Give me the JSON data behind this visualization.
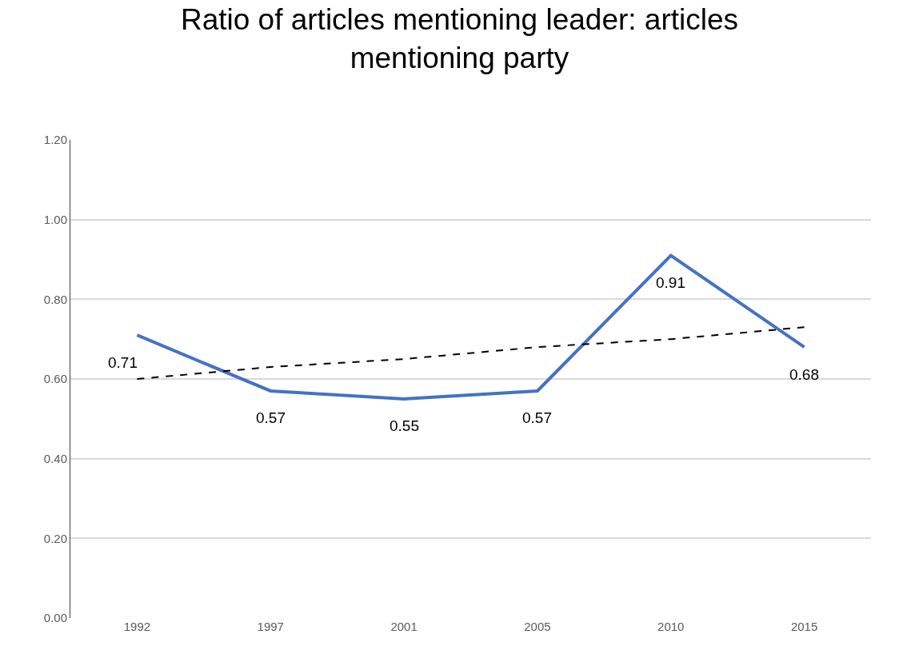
{
  "chart_data": {
    "type": "line",
    "title": "Ratio of articles mentioning leader: articles mentioning party",
    "categories": [
      "1992",
      "1997",
      "2001",
      "2005",
      "2010",
      "2015"
    ],
    "series": [
      {
        "color": "#4472c4",
        "values": [
          0.71,
          0.57,
          0.55,
          0.57,
          0.91,
          0.68
        ],
        "value_labels": [
          "0.71",
          "0.57",
          "0.55",
          "0.57",
          "0.91",
          "0.68"
        ]
      },
      {
        "type": "line",
        "color": "#000000",
        "line_style": "dashed",
        "values": [
          0.6,
          0.63,
          0.65,
          0.68,
          0.7,
          0.73
        ]
      }
    ],
    "ylim": [
      0,
      1.2
    ],
    "yticks": [
      {
        "value": 0,
        "label": "0.00"
      },
      {
        "value": 0.2,
        "label": "0.20"
      },
      {
        "value": 0.4,
        "label": "0.40"
      },
      {
        "value": 0.6,
        "label": "0.60"
      },
      {
        "value": 0.8,
        "label": "0.80"
      },
      {
        "value": 1.0,
        "label": "1.00"
      },
      {
        "value": 1.2,
        "label": "1.20"
      }
    ],
    "grid": "y",
    "legend": false,
    "marker": "none"
  }
}
